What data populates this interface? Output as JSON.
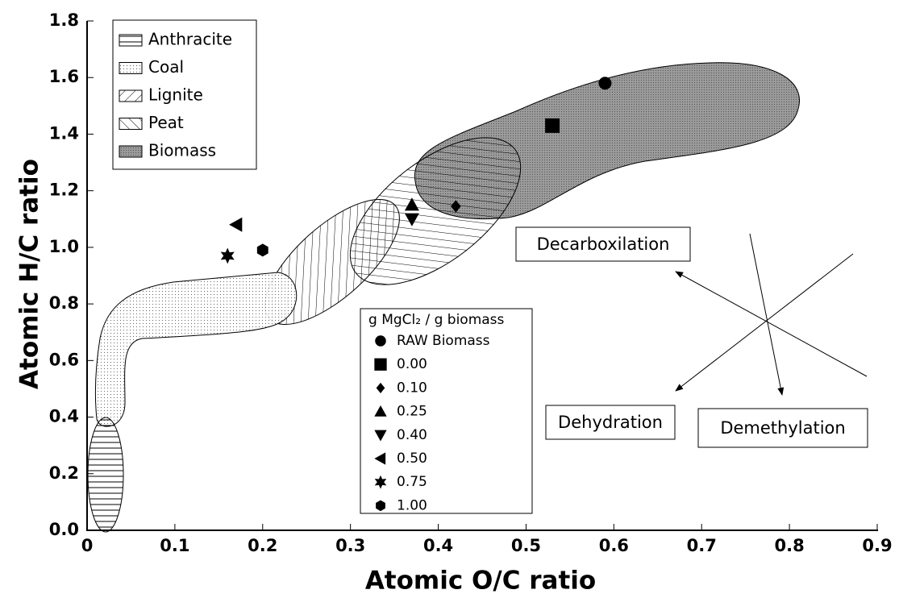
{
  "chart_data": {
    "type": "scatter",
    "xlabel": "Atomic O/C ratio",
    "ylabel": "Atomic H/C ratio",
    "xlim": [
      0,
      0.9
    ],
    "ylim": [
      0,
      1.8
    ],
    "xticks": [
      0,
      0.1,
      0.2,
      0.3,
      0.4,
      0.5,
      0.6,
      0.7,
      0.8,
      0.9
    ],
    "yticks": [
      {
        "value": 0,
        "label": "0.0"
      },
      0.2,
      0.4,
      0.6,
      0.8,
      {
        "value": 1,
        "label": "1.0"
      },
      1.2,
      1.4,
      1.6,
      1.8
    ],
    "regions": [
      {
        "name": "Anthracite",
        "pattern": "pat-h"
      },
      {
        "name": "Coal",
        "pattern": "pat-dot"
      },
      {
        "name": "Lignite",
        "pattern": "pat-fw"
      },
      {
        "name": "Peat",
        "pattern": "pat-bw"
      },
      {
        "name": "Biomass",
        "pattern": "pat-bio"
      }
    ],
    "legend_title": "g MgCl₂ / g biomass",
    "color": "#000000",
    "series": [
      {
        "name": "RAW Biomass",
        "marker": "circle",
        "x": [
          0.59
        ],
        "y": [
          1.58
        ]
      },
      {
        "name": "0.00",
        "marker": "square",
        "x": [
          0.53
        ],
        "y": [
          1.43
        ]
      },
      {
        "name": "0.10",
        "marker": "diamond",
        "x": [
          0.42
        ],
        "y": [
          1.145
        ]
      },
      {
        "name": "0.25",
        "marker": "triangle-up",
        "x": [
          0.37
        ],
        "y": [
          1.15
        ]
      },
      {
        "name": "0.40",
        "marker": "triangle-down",
        "x": [
          0.37
        ],
        "y": [
          1.1
        ]
      },
      {
        "name": "0.50",
        "marker": "triangle-left",
        "x": [
          0.17
        ],
        "y": [
          1.08
        ]
      },
      {
        "name": "0.75",
        "marker": "star",
        "x": [
          0.16
        ],
        "y": [
          0.97
        ]
      },
      {
        "name": "1.00",
        "marker": "hexagon",
        "x": [
          0.2
        ],
        "y": [
          0.99
        ]
      }
    ],
    "annotations": [
      "Decarboxilation",
      "Dehydration",
      "Demethylation"
    ]
  }
}
